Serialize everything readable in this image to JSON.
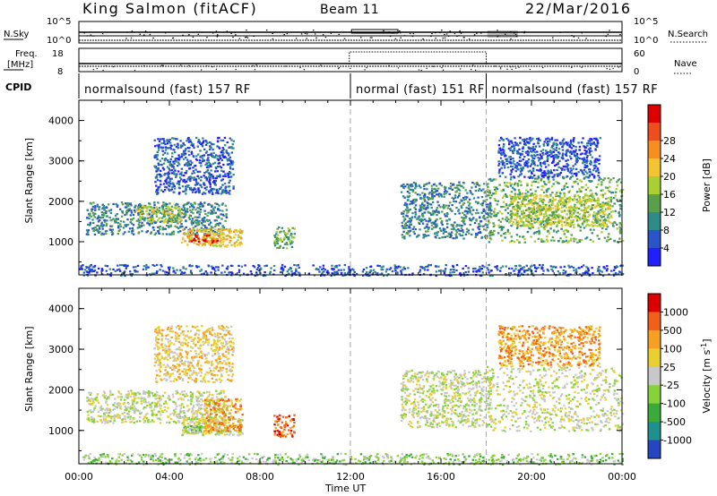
{
  "header": {
    "station": "King Salmon (fitACF)",
    "beam": "Beam 11",
    "date": "22/Mar/2016"
  },
  "top_strips": {
    "nsky_label": "N.Sky",
    "nsky_ticks": [
      "10^5",
      "10^0"
    ],
    "nsearch_label": "N.Search",
    "nsearch_ticks": [
      "10^5",
      "10^0"
    ],
    "freq_label": "Freq.",
    "freq_unit": "[MHz]",
    "freq_ticks": [
      "18",
      "8"
    ],
    "nave_label": "Nave",
    "nave_ticks": [
      "60",
      "0"
    ],
    "cpid_label": "CPID",
    "cpid_segments": [
      {
        "label": "normalsound (fast) 157 RF",
        "start": 0,
        "end": 12
      },
      {
        "label": "normal (fast) 151 RF",
        "start": 12,
        "end": 18
      },
      {
        "label": "normalsound (fast) 157 RF",
        "start": 18,
        "end": 24
      }
    ]
  },
  "chart_data": [
    {
      "type": "heatmap",
      "name": "power",
      "ylabel": "Slant Range [km]",
      "ylim": [
        180,
        4500
      ],
      "yticks": [
        "1000",
        "2000",
        "3000",
        "4000"
      ],
      "xlim": [
        0,
        24
      ],
      "colorbar": {
        "label": "Power [dB]",
        "ticks": [
          "4",
          "8",
          "12",
          "16",
          "20",
          "24",
          "28"
        ],
        "colors": [
          "#1f1fff",
          "#2a55c8",
          "#2f8a8a",
          "#5aa04a",
          "#a8d033",
          "#f2c531",
          "#f59020",
          "#ee4d1d",
          "#dd0000"
        ]
      },
      "regions": [
        {
          "t0": 0.3,
          "t1": 6.5,
          "r0": 1200,
          "r1": 2000,
          "level": 2
        },
        {
          "t0": 2.5,
          "t1": 4.5,
          "r0": 1500,
          "r1": 1900,
          "level": 4
        },
        {
          "t0": 4.5,
          "t1": 7.2,
          "r0": 900,
          "r1": 1350,
          "level": 5
        },
        {
          "t0": 4.8,
          "t1": 6.2,
          "r0": 1000,
          "r1": 1200,
          "level": 7
        },
        {
          "t0": 3.3,
          "t1": 6.8,
          "r0": 2200,
          "r1": 3600,
          "level": 1
        },
        {
          "t0": 8.6,
          "t1": 9.5,
          "r0": 850,
          "r1": 1400,
          "level": 3
        },
        {
          "t0": 14.2,
          "t1": 18.2,
          "r0": 1100,
          "r1": 2500,
          "level": 2
        },
        {
          "t0": 18.0,
          "t1": 24.0,
          "r0": 1000,
          "r1": 2600,
          "level": 3
        },
        {
          "t0": 19.0,
          "t1": 23.5,
          "r0": 1400,
          "r1": 2200,
          "level": 4
        },
        {
          "t0": 18.5,
          "t1": 23.0,
          "r0": 2600,
          "r1": 3600,
          "level": 1
        },
        {
          "t0": 0.0,
          "t1": 24.0,
          "r0": 180,
          "r1": 450,
          "level": 1
        }
      ]
    },
    {
      "type": "heatmap",
      "name": "velocity",
      "ylabel": "Slant Range [km]",
      "ylim": [
        180,
        4500
      ],
      "yticks": [
        "1000",
        "2000",
        "3000",
        "4000"
      ],
      "xlim": [
        0,
        24
      ],
      "xticks": [
        "00:00",
        "04:00",
        "08:00",
        "12:00",
        "16:00",
        "20:00",
        "00:00"
      ],
      "xlabel": "Time UT",
      "colorbar": {
        "label": "Velocity [m s",
        "label_sup": "-1",
        "label_end": "]",
        "ticks": [
          "1000",
          "500",
          "100",
          "25",
          "-25",
          "-100",
          "-500",
          "-1000"
        ],
        "colors": [
          "#2546c0",
          "#1f9090",
          "#3aaa3a",
          "#86d23a",
          "#c8c8c8",
          "#e8d030",
          "#f5a020",
          "#f06018",
          "#dd0000"
        ]
      },
      "regions": [
        {
          "t0": 0.3,
          "t1": 6.5,
          "r0": 1200,
          "r1": 2000,
          "level": 4
        },
        {
          "t0": 4.5,
          "t1": 7.2,
          "r0": 900,
          "r1": 1350,
          "level": 4
        },
        {
          "t0": 5.5,
          "t1": 7.2,
          "r0": 1000,
          "r1": 1800,
          "level": 6
        },
        {
          "t0": 4.6,
          "t1": 5.4,
          "r0": 950,
          "r1": 1150,
          "level": 3
        },
        {
          "t0": 3.3,
          "t1": 6.8,
          "r0": 2200,
          "r1": 3600,
          "level": 5
        },
        {
          "t0": 8.6,
          "t1": 9.5,
          "r0": 850,
          "r1": 1400,
          "level": 7
        },
        {
          "t0": 14.2,
          "t1": 18.2,
          "r0": 1100,
          "r1": 2500,
          "level": 4
        },
        {
          "t0": 18.0,
          "t1": 24.0,
          "r0": 1000,
          "r1": 2600,
          "level": 4
        },
        {
          "t0": 18.5,
          "t1": 23.0,
          "r0": 2600,
          "r1": 3600,
          "level": 6
        },
        {
          "t0": 0.0,
          "t1": 24.0,
          "r0": 180,
          "r1": 450,
          "level": 3
        }
      ]
    }
  ]
}
